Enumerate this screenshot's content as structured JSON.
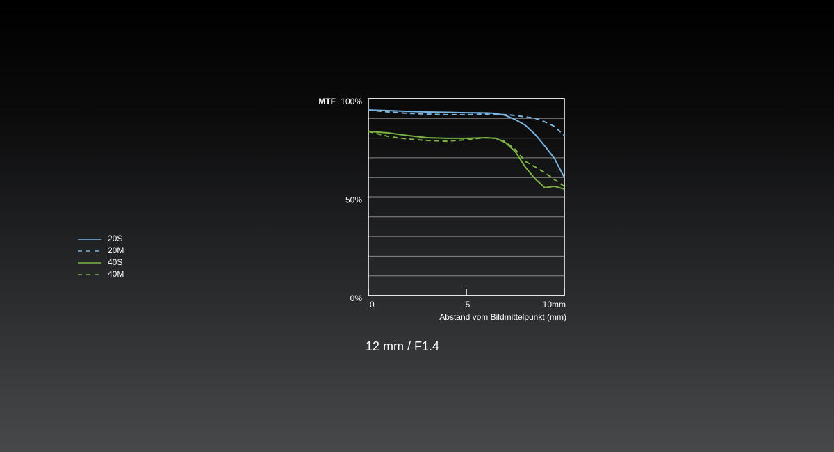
{
  "chart_data": {
    "type": "line",
    "title": "12 mm / F1.4",
    "y_axis_title": "MTF",
    "x_axis_title": "Abstand vom Bildmittelpunkt (mm)",
    "x": [
      0,
      1,
      2,
      3,
      4,
      5,
      6,
      6.5,
      7,
      7.5,
      8,
      8.5,
      9,
      9.5,
      10
    ],
    "series": [
      {
        "name": "20S",
        "color": "#7ab4e0",
        "dashed": false,
        "values": [
          94.3,
          94,
          93.6,
          93.3,
          93.1,
          92.9,
          92.8,
          92.6,
          91.5,
          89.4,
          86.6,
          82,
          76,
          69.6,
          60
        ]
      },
      {
        "name": "20M",
        "color": "#7ab4e0",
        "dashed": true,
        "values": [
          94.3,
          93.3,
          92.6,
          92.2,
          91.9,
          91.9,
          92.2,
          92.2,
          91.9,
          91.5,
          90.8,
          90.1,
          88.3,
          85.9,
          81.3
        ]
      },
      {
        "name": "40S",
        "color": "#7cb342",
        "dashed": false,
        "values": [
          83.4,
          82.7,
          81.3,
          80.2,
          79.9,
          79.9,
          80.2,
          79.9,
          77.7,
          73.1,
          65.4,
          59.4,
          54.8,
          55.5,
          54.1
        ]
      },
      {
        "name": "40M",
        "color": "#7cb342",
        "dashed": true,
        "values": [
          83.4,
          80.9,
          79.5,
          78.8,
          78.4,
          79.2,
          80.2,
          79.9,
          78.1,
          74.2,
          68.2,
          65.4,
          62.5,
          58.9,
          55.5
        ]
      }
    ],
    "xlim": [
      0,
      10
    ],
    "ylim": [
      0,
      100
    ],
    "xticks": [
      0,
      5,
      {
        "value": 10,
        "label": "10mm"
      }
    ],
    "yticks": [
      {
        "value": 0,
        "label": "0%"
      },
      {
        "value": 50,
        "label": "50%"
      },
      {
        "value": 100,
        "label": "100%"
      }
    ],
    "minor_yticks": [
      10,
      20,
      30,
      40,
      60,
      70,
      80,
      90
    ],
    "grid": true,
    "legend": "left"
  }
}
